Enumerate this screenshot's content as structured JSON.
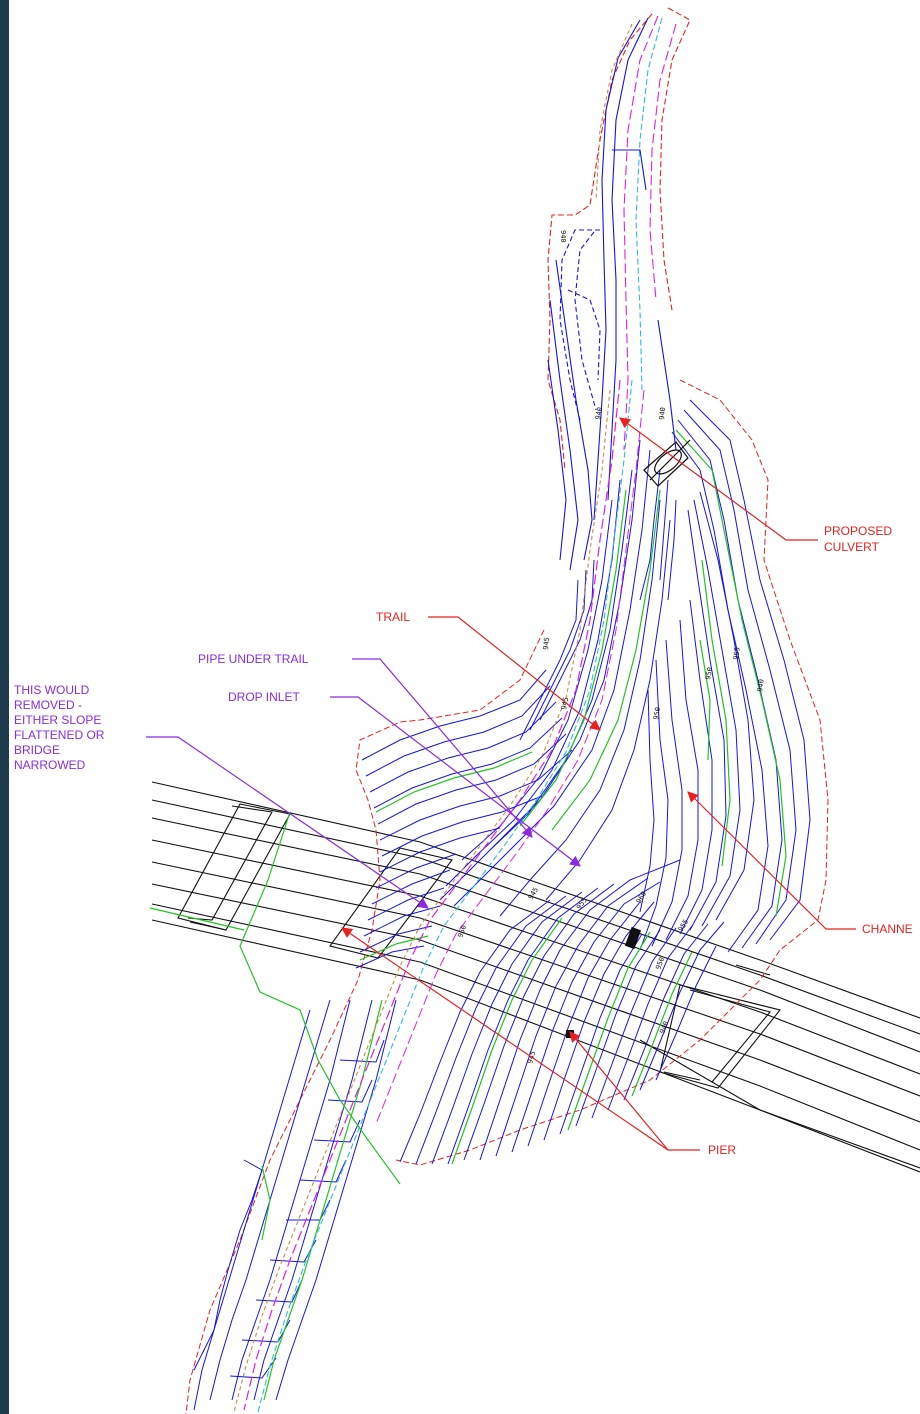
{
  "labels": {
    "proposed_culvert": [
      "PROPOSED",
      "CULVERT"
    ],
    "trail": "TRAIL",
    "pipe_under_trail": "PIPE UNDER TRAIL",
    "drop_inlet": "DROP INLET",
    "this_would_removed": [
      "THIS WOULD",
      "REMOVED -",
      "EITHER SLOPE",
      "FLATTENED OR",
      "BRIDGE",
      "NARROWED"
    ],
    "channel": "CHANNE",
    "pier": "PIER"
  },
  "contour_labels": [
    "940",
    "940",
    "940",
    "945",
    "945",
    "950",
    "950",
    "955",
    "940",
    "945",
    "950",
    "955",
    "960",
    "955",
    "950",
    "945",
    "940"
  ],
  "colors": {
    "callout_red": "#e8201e",
    "callout_purple": "#8a2be2",
    "contour_blue": "#1414e6",
    "contour_green": "#22c422",
    "edge_magenta": "#e020e0",
    "edge_orange": "#d08a3a",
    "edge_cyan": "#30b8e8",
    "bridge_black": "#111111",
    "frame": "#1d3b4c"
  },
  "icons": {
    "arrowhead_red": "triangle-arrowhead",
    "arrowhead_purple": "triangle-arrowhead"
  }
}
